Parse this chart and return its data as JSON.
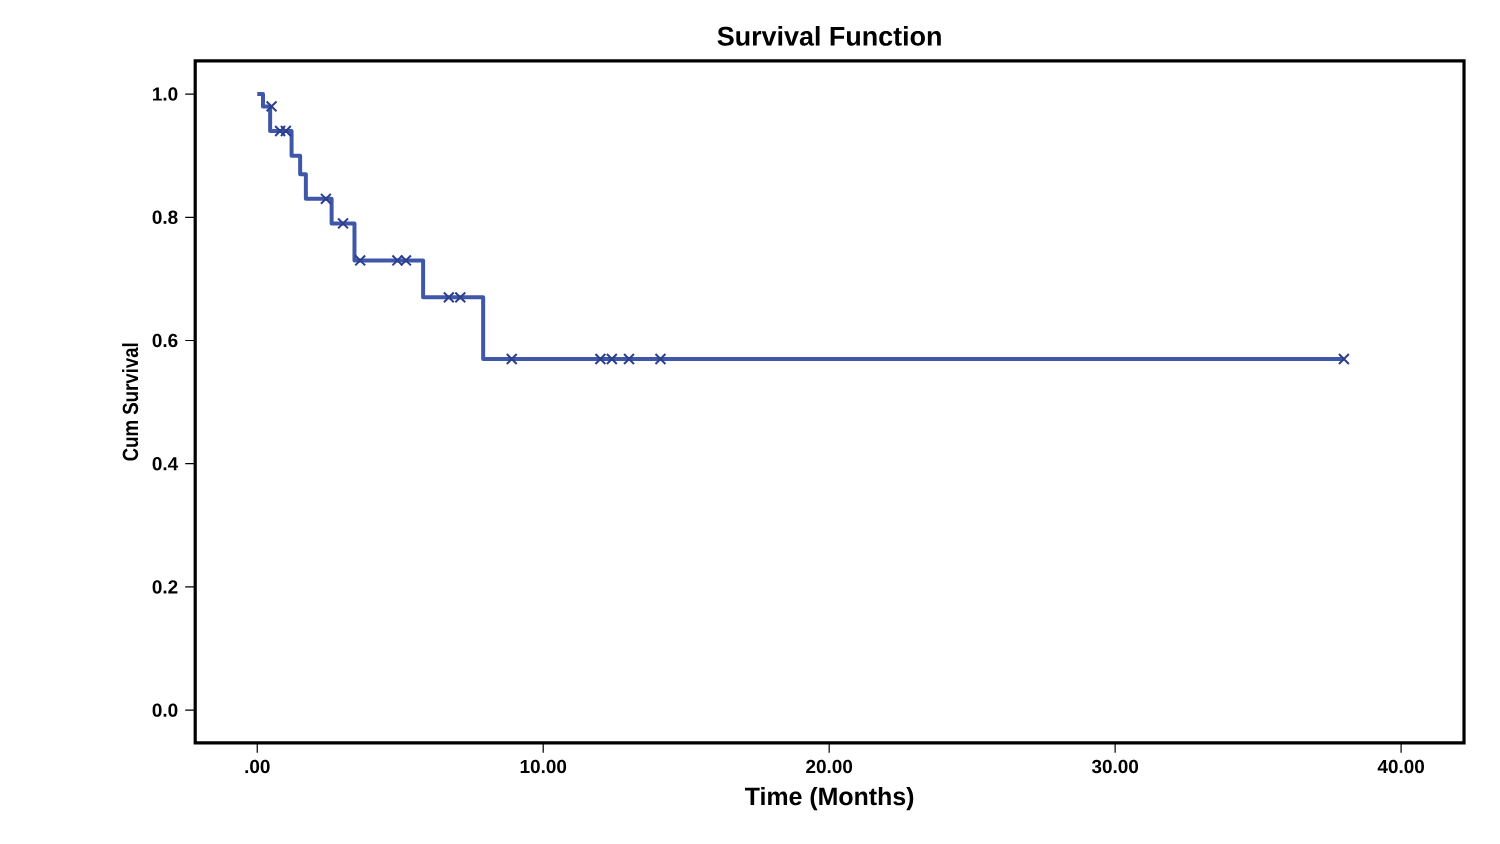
{
  "chart_data": {
    "type": "step",
    "title": "Survival Function",
    "xlabel": "Time (Months)",
    "ylabel": "Cum Survival",
    "xlim": [
      -2.17,
      42.2
    ],
    "ylim": [
      -0.053,
      1.054
    ],
    "xticks": [
      {
        "value": 0,
        "label": ".00"
      },
      {
        "value": 10,
        "label": "10.00"
      },
      {
        "value": 20,
        "label": "20.00"
      },
      {
        "value": 30,
        "label": "30.00"
      },
      {
        "value": 40,
        "label": "40.00"
      }
    ],
    "yticks": [
      {
        "value": 0,
        "label": "0.0"
      },
      {
        "value": 0.2,
        "label": "0.2"
      },
      {
        "value": 0.4,
        "label": "0.4"
      },
      {
        "value": 0.6,
        "label": "0.6"
      },
      {
        "value": 0.8,
        "label": "0.8"
      },
      {
        "value": 1,
        "label": "1.0"
      }
    ],
    "grid": false,
    "series": [
      {
        "color": "#3f57a8",
        "marker": "none",
        "x": [
          0,
          0.2,
          0.45,
          1.2,
          1.5,
          1.7,
          2.6,
          3.4,
          5.8,
          7.9,
          38
        ],
        "values": [
          1,
          0.98,
          0.94,
          0.9,
          0.87,
          0.83,
          0.79,
          0.73,
          0.67,
          0.57,
          0.57
        ]
      },
      {
        "type": "scatter",
        "color": "#2c3f8f",
        "marker": "cross",
        "x": [
          0.5,
          0.8,
          1.0,
          2.4,
          3.0,
          3.6,
          4.9,
          5.2,
          6.7,
          7.1,
          8.9,
          12.0,
          12.4,
          13.0,
          14.1,
          38.0
        ],
        "values": [
          0.98,
          0.94,
          0.94,
          0.83,
          0.79,
          0.73,
          0.73,
          0.73,
          0.67,
          0.67,
          0.57,
          0.57,
          0.57,
          0.57,
          0.57,
          0.57
        ]
      }
    ]
  }
}
